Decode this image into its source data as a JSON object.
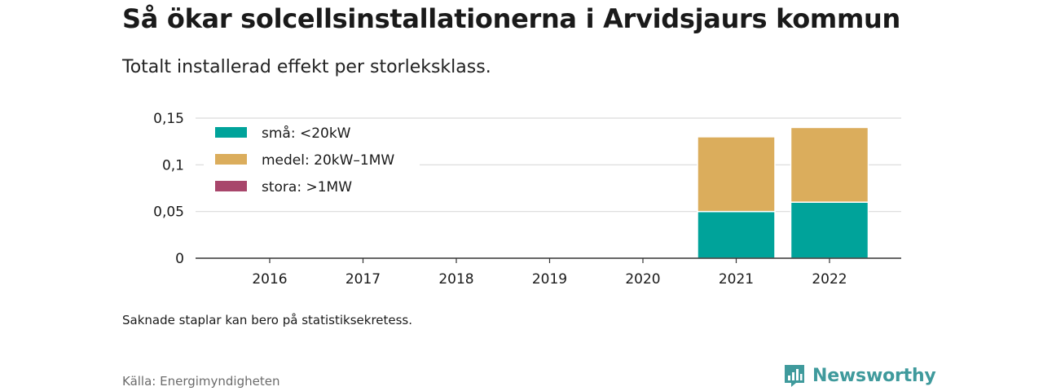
{
  "header": {
    "title": "Så ökar solcellsinstallationerna i Arvidsjaurs kommun",
    "subtitle": "Totalt installerad effekt per storleksklass."
  },
  "footer": {
    "note": "Saknade staplar kan bero på statistiksekretess.",
    "source": "Källa: Energimyndigheten",
    "brand": "Newsworthy",
    "brand_icon": "newsworthy-logo-icon",
    "brand_color": "#3f9a9c"
  },
  "chart_data": {
    "type": "bar",
    "stacked": true,
    "categories": [
      "2016",
      "2017",
      "2018",
      "2019",
      "2020",
      "2021",
      "2022"
    ],
    "series": [
      {
        "name": "små: <20kW",
        "color": "#00a39a",
        "values": [
          0,
          0,
          0,
          0,
          0,
          0.05,
          0.06
        ]
      },
      {
        "name": "medel: 20kW–1MW",
        "color": "#dbad5c",
        "values": [
          0,
          0,
          0,
          0,
          0,
          0.08,
          0.08
        ]
      },
      {
        "name": "stora: >1MW",
        "color": "#a8466b",
        "values": [
          0,
          0,
          0,
          0,
          0,
          0,
          0
        ]
      }
    ],
    "ylim": [
      0,
      0.15
    ],
    "yticks": [
      0,
      0.05,
      0.1,
      0.15
    ],
    "ytick_labels": [
      "0",
      "0,05",
      "0,1",
      "0,15"
    ],
    "grid": true,
    "legend_position": "top-left",
    "xlabel": "",
    "ylabel": ""
  }
}
